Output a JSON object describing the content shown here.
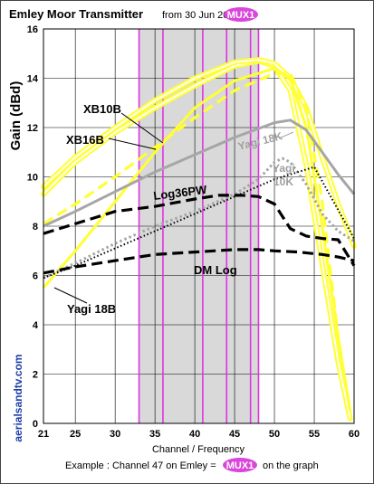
{
  "header": {
    "title": "Emley Moor Transmitter",
    "subtitle": "from 30 Jun 2022",
    "mux_badge": "MUX1"
  },
  "footer": {
    "example_prefix": "Example : Channel 47 on Emley =",
    "example_badge": "MUX1",
    "example_suffix": "on the graph"
  },
  "side_text": "aerialsandtv.com",
  "colors": {
    "band_fill": "#d9d9d9",
    "channel_lines": "#e033e0",
    "mux_badge": "#d946d9",
    "yellow": "#ffff33",
    "grey": "#a6a6a6",
    "black": "#000000",
    "side_text": "#1f3fa8"
  },
  "chart_data": {
    "type": "line",
    "xlabel": "Channel / Frequency",
    "ylabel": "Gain (dBd)",
    "xlim": [
      21,
      60
    ],
    "ylim": [
      0,
      16
    ],
    "xticks": [
      21,
      25,
      30,
      35,
      40,
      45,
      50,
      55,
      60
    ],
    "yticks": [
      0,
      2,
      4,
      6,
      8,
      10,
      12,
      14,
      16
    ],
    "grid": true,
    "shaded_band": [
      33,
      48
    ],
    "channel_markers": [
      33,
      36,
      41,
      44,
      47,
      48
    ],
    "series": [
      {
        "name": "XB10B",
        "color": "#ffff33",
        "style": "double",
        "x": [
          21,
          25,
          30,
          35,
          40,
          45,
          48,
          50,
          52,
          54,
          56,
          58,
          59.5
        ],
        "y": [
          9.3,
          10.6,
          11.8,
          12.8,
          13.7,
          14.5,
          14.7,
          14.5,
          13.5,
          10.5,
          6.5,
          2.5,
          0.2
        ]
      },
      {
        "name": "",
        "color": "#ffff33",
        "style": "double",
        "x": [
          21,
          25,
          30,
          35,
          40,
          45,
          48,
          50,
          52,
          54,
          56,
          58,
          60
        ],
        "y": [
          9.6,
          10.8,
          12.0,
          13.1,
          14.0,
          14.65,
          14.75,
          14.6,
          14.0,
          12.8,
          10.8,
          8.9,
          7.2
        ]
      },
      {
        "name": "XB16B",
        "color": "#ffff33",
        "style": "dashed",
        "x": [
          21,
          25,
          30,
          35,
          40,
          45,
          50,
          52,
          54,
          56,
          58,
          59.5
        ],
        "y": [
          8.1,
          8.9,
          10.0,
          11.2,
          12.4,
          13.5,
          14.2,
          14.2,
          12.8,
          9.0,
          3.5,
          0.5
        ]
      },
      {
        "name": "",
        "color": "#ffff33",
        "style": "solid",
        "x": [
          21,
          25,
          30,
          35,
          40,
          45,
          50,
          52,
          54,
          56,
          58,
          59.5
        ],
        "y": [
          5.5,
          7.0,
          9.0,
          11.0,
          12.8,
          13.9,
          14.4,
          14.0,
          12.0,
          8.0,
          3.5,
          0.5
        ]
      },
      {
        "name": "Yagi 18K",
        "color": "#a6a6a6",
        "style": "solid",
        "x": [
          21,
          25,
          30,
          35,
          40,
          45,
          50,
          52,
          54,
          56,
          58,
          60
        ],
        "y": [
          8.0,
          8.6,
          9.4,
          10.2,
          10.9,
          11.6,
          12.2,
          12.3,
          11.9,
          11.0,
          10.1,
          9.3
        ]
      },
      {
        "name": "Yagi 10K",
        "color": "#a6a6a6",
        "style": "dotted",
        "x": [
          21,
          25,
          30,
          35,
          40,
          45,
          48,
          50,
          51,
          52,
          54,
          56,
          58,
          60
        ],
        "y": [
          5.9,
          6.5,
          7.3,
          8.0,
          8.6,
          9.3,
          9.9,
          10.6,
          10.75,
          10.6,
          9.7,
          8.5,
          7.8,
          7.4
        ]
      },
      {
        "name": "Log36PW",
        "color": "#000000",
        "style": "dashed",
        "x": [
          21,
          25,
          30,
          35,
          40,
          43,
          46,
          48,
          50,
          51,
          52,
          54,
          56,
          58,
          60
        ],
        "y": [
          7.7,
          8.1,
          8.6,
          8.8,
          9.1,
          9.25,
          9.25,
          9.2,
          8.9,
          8.4,
          7.9,
          7.6,
          7.5,
          7.45,
          6.4
        ]
      },
      {
        "name": "DM Log",
        "color": "#000000",
        "style": "dashed",
        "x": [
          21,
          25,
          30,
          35,
          40,
          45,
          48,
          50,
          53,
          56,
          58,
          60
        ],
        "y": [
          6.1,
          6.35,
          6.6,
          6.85,
          6.95,
          7.05,
          7.05,
          7.0,
          6.95,
          6.85,
          6.75,
          6.6
        ]
      },
      {
        "name": "Yagi 18B",
        "color": "#000000",
        "style": "dotted-fine",
        "x": [
          21,
          25,
          30,
          35,
          40,
          45,
          50,
          55,
          60
        ],
        "y": [
          5.9,
          6.4,
          7.1,
          7.8,
          8.5,
          9.2,
          9.9,
          10.4,
          7.5
        ]
      }
    ],
    "labels": [
      {
        "text": "XB10B",
        "series": "XB10B"
      },
      {
        "text": "XB16B",
        "series": "XB16B"
      },
      {
        "text": "Yagi 18K",
        "series": "Yagi 18K"
      },
      {
        "text": "Yagi",
        "series": "Yagi 10K"
      },
      {
        "text": "10K",
        "series": "Yagi 10K"
      },
      {
        "text": "Log36PW",
        "series": "Log36PW"
      },
      {
        "text": "DM Log",
        "series": "DM Log"
      },
      {
        "text": "Yagi 18B",
        "series": "Yagi 18B"
      }
    ]
  }
}
